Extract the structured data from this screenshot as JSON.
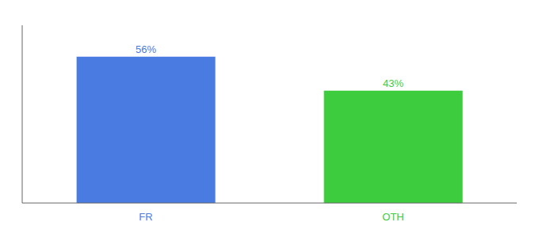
{
  "chart_data": {
    "type": "bar",
    "categories": [
      "FR",
      "OTH"
    ],
    "values": [
      56,
      43
    ],
    "value_labels": [
      "56%",
      "43%"
    ],
    "colors": [
      "#4a7be0",
      "#3dcc3d"
    ],
    "ylim": [
      0,
      68
    ],
    "data_labels": true,
    "tick_labels": "x"
  }
}
